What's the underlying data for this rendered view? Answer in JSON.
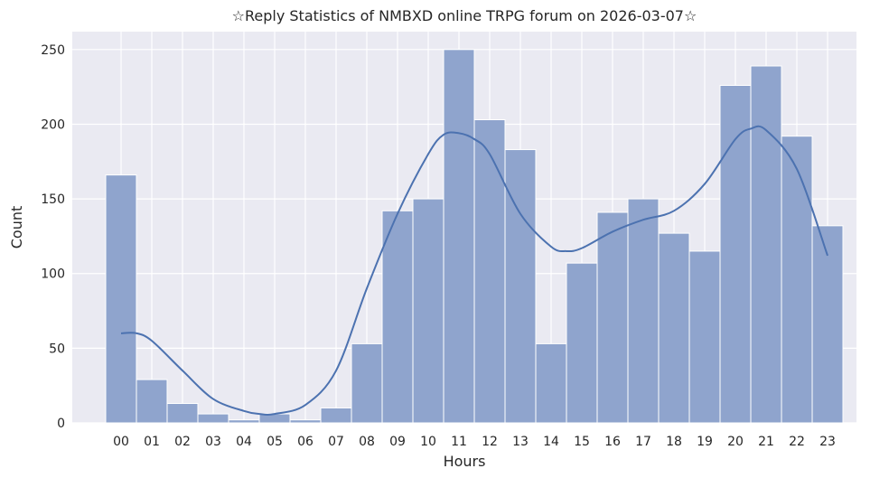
{
  "chart_data": {
    "type": "bar",
    "title": "☆Reply Statistics of NMBXD online TRPG forum on 2026-03-07☆",
    "xlabel": "Hours",
    "ylabel": "Count",
    "categories": [
      "00",
      "01",
      "02",
      "03",
      "04",
      "05",
      "06",
      "07",
      "08",
      "09",
      "10",
      "11",
      "12",
      "13",
      "14",
      "15",
      "16",
      "17",
      "18",
      "19",
      "20",
      "21",
      "22",
      "23"
    ],
    "values": [
      166,
      29,
      13,
      6,
      2,
      6,
      2,
      10,
      53,
      142,
      150,
      250,
      203,
      183,
      53,
      107,
      141,
      150,
      127,
      115,
      226,
      239,
      192,
      132
    ],
    "yticks": [
      0,
      50,
      100,
      150,
      200,
      250
    ],
    "ylim": [
      0,
      262
    ],
    "grid": true,
    "kde": {
      "x": [
        0,
        0.5,
        1,
        2,
        3,
        4,
        4.5,
        5,
        6,
        7,
        8,
        9,
        10,
        10.5,
        11,
        11.5,
        12,
        13,
        14,
        14.5,
        15,
        16,
        17,
        18,
        19,
        20,
        20.5,
        21,
        22,
        23
      ],
      "y": [
        60,
        60,
        55,
        35,
        16,
        8,
        6,
        6,
        12,
        35,
        90,
        140,
        180,
        193,
        194,
        190,
        180,
        140,
        118,
        115,
        117,
        128,
        136,
        142,
        160,
        190,
        197,
        196,
        170,
        112
      ]
    },
    "colors": {
      "bar_fill": "#8fa4cd",
      "bar_edge": "#ffffff",
      "kde_line": "#4c72b0",
      "plot_bg": "#eaeaf2",
      "grid": "#ffffff"
    }
  }
}
